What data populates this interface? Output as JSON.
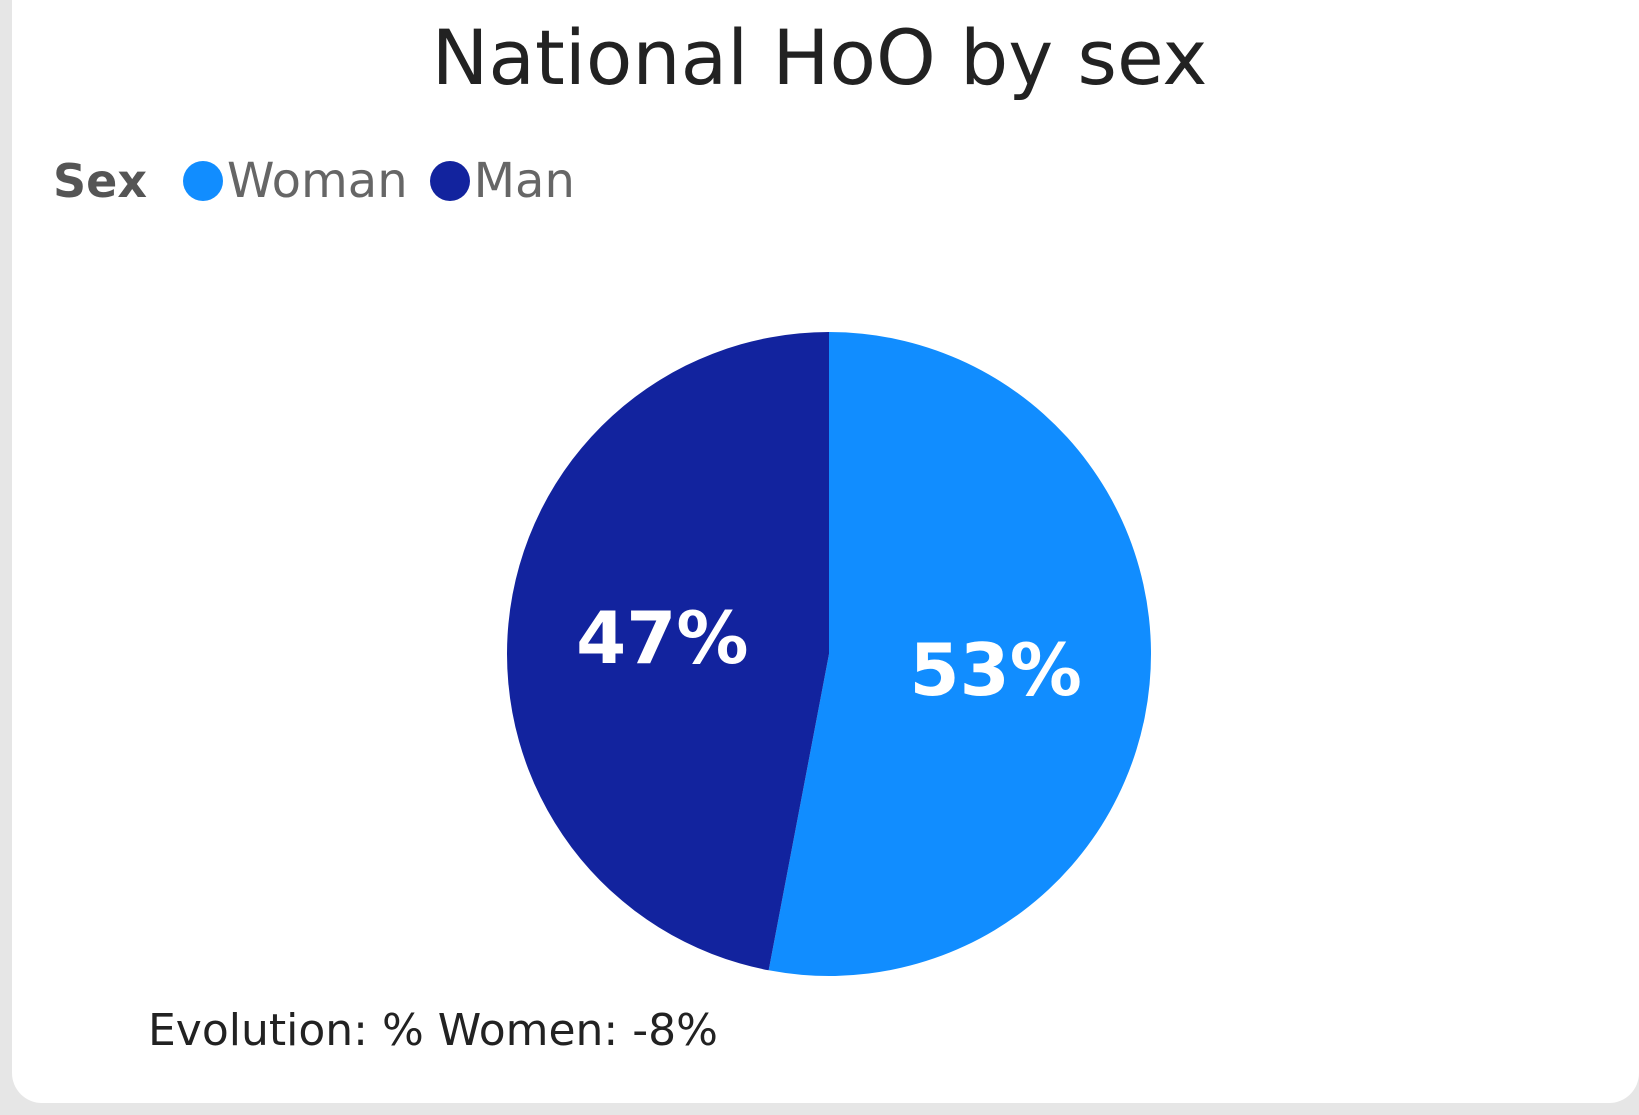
{
  "chart_data": {
    "type": "pie",
    "title": "National HoO by sex",
    "legend_title": "Sex",
    "legend_position": "top-left",
    "categories": [
      "Woman",
      "Man"
    ],
    "values": [
      53,
      47
    ],
    "labels": [
      "53%",
      "47%"
    ],
    "colors": [
      "#118DFF",
      "#12239E"
    ]
  },
  "footer": {
    "note": "Evolution: % Women: -8%"
  }
}
